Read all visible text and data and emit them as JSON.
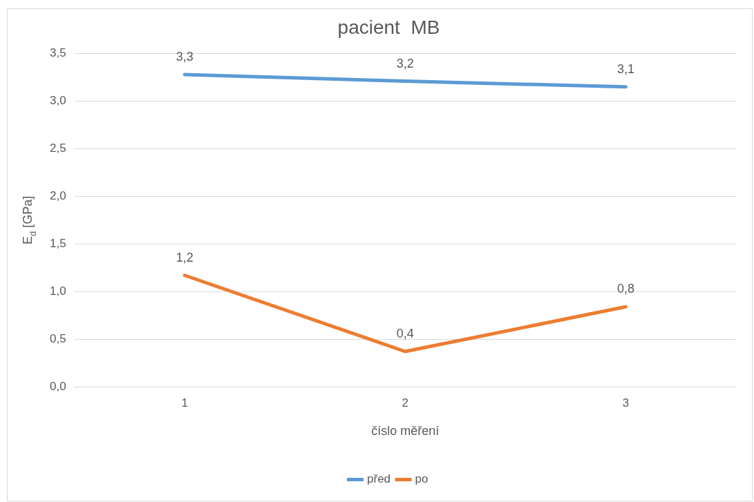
{
  "chart_data": {
    "type": "line",
    "title": "pacient  MB",
    "xlabel": "číslo měření",
    "ylabel": "E$_{d}$ [GPa]",
    "categories": [
      "1",
      "2",
      "3"
    ],
    "series": [
      {
        "name": "před",
        "color": "#5b9bd5",
        "values": [
          3.28,
          3.21,
          3.15
        ],
        "value_labels": [
          "3,3",
          "3,2",
          "3,1"
        ]
      },
      {
        "name": "po",
        "color": "#ed7d31",
        "values": [
          1.17,
          0.37,
          0.84
        ],
        "value_labels": [
          "1,2",
          "0,4",
          "0,8"
        ]
      }
    ],
    "ylim": [
      0,
      3.5
    ],
    "yticks": [
      {
        "value": 0,
        "label": "0,0"
      },
      {
        "value": 0.5,
        "label": "0,5"
      },
      {
        "value": 1,
        "label": "1,0"
      },
      {
        "value": 1.5,
        "label": "1,5"
      },
      {
        "value": 2,
        "label": "2,0"
      },
      {
        "value": 2.5,
        "label": "2,5"
      },
      {
        "value": 3,
        "label": "3,0"
      },
      {
        "value": 3.5,
        "label": "3,5"
      }
    ],
    "grid": "y",
    "legend": "bottom",
    "marker": "none"
  }
}
